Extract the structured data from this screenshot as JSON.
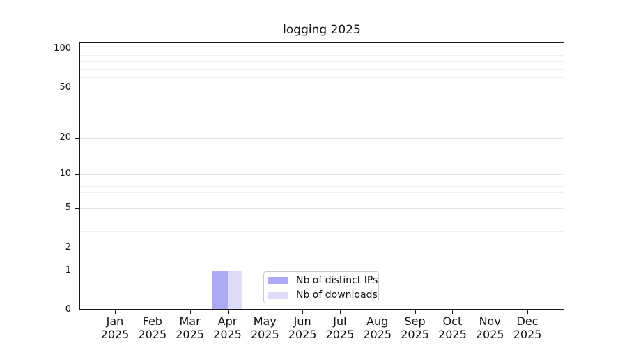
{
  "chart_data": {
    "type": "bar",
    "title": "logging 2025",
    "categories": [
      "Jan 2025",
      "Feb 2025",
      "Mar 2025",
      "Apr 2025",
      "May 2025",
      "Jun 2025",
      "Jul 2025",
      "Aug 2025",
      "Sep 2025",
      "Oct 2025",
      "Nov 2025",
      "Dec 2025"
    ],
    "series": [
      {
        "name": "Nb of distinct IPs",
        "color": "#aaaaf7",
        "values": [
          0,
          0,
          0,
          1,
          0,
          0,
          0,
          0,
          0,
          0,
          0,
          0
        ]
      },
      {
        "name": "Nb of downloads",
        "color": "#dcdcf9",
        "values": [
          0,
          0,
          0,
          1,
          0,
          0,
          0,
          0,
          0,
          0,
          0,
          0
        ]
      }
    ],
    "xlabel": "",
    "ylabel": "",
    "yscale": "log1p",
    "y_major_ticks": [
      0,
      1,
      2,
      5,
      10,
      20,
      50,
      100
    ],
    "y_minor_gridlines": [
      3,
      4,
      6,
      7,
      8,
      9,
      30,
      40,
      60,
      70,
      80,
      90
    ],
    "ylim": [
      0,
      112
    ],
    "grid": "horizontal-both-major-and-minor",
    "legend_position": "inside lower-center",
    "bar_layout": "two bars side by side centered on Apr tick, each value 1"
  },
  "colors": {
    "background": "#ffffff",
    "spine": "#1a1a1a",
    "grid_minor": "#efefef",
    "grid_major": "#e4e4e4",
    "grid_top_dark": "#b4b4b4",
    "text": "#111111",
    "legend_border": "#cccccc"
  }
}
